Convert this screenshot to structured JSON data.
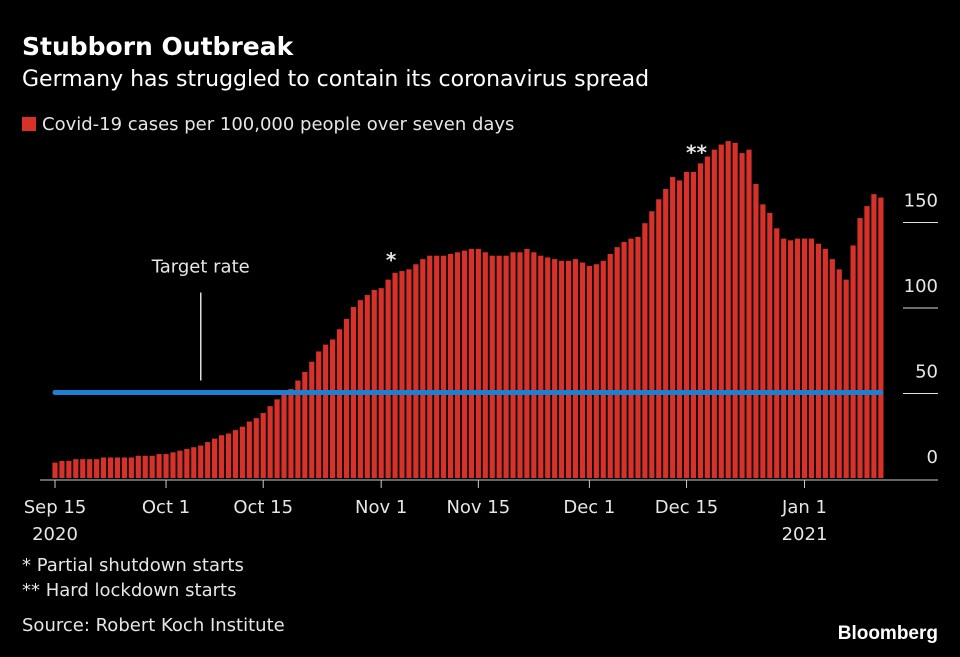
{
  "chart_data": {
    "type": "bar",
    "title": "Stubborn Outbreak",
    "subtitle": "Germany has struggled to contain its coronavirus spread",
    "series": [
      {
        "name": "Covid-19 cases per 100,000 people over seven days",
        "color": "#d7312a",
        "values": [
          9,
          10,
          10,
          11,
          11,
          11,
          11,
          12,
          12,
          12,
          12,
          12,
          13,
          13,
          13,
          14,
          14,
          15,
          16,
          17,
          18,
          19,
          21,
          23,
          25,
          26,
          28,
          30,
          33,
          35,
          38,
          42,
          46,
          49,
          52,
          57,
          62,
          68,
          74,
          78,
          81,
          87,
          93,
          100,
          104,
          107,
          110,
          111,
          116,
          120,
          121,
          122,
          125,
          128,
          130,
          130,
          130,
          131,
          132,
          133,
          134,
          134,
          132,
          130,
          130,
          130,
          132,
          132,
          134,
          132,
          130,
          129,
          128,
          127,
          127,
          128,
          126,
          124,
          125,
          127,
          131,
          135,
          138,
          140,
          141,
          149,
          156,
          163,
          169,
          176,
          174,
          179,
          179,
          184,
          188,
          192,
          195,
          197,
          196,
          190,
          192,
          172,
          160,
          155,
          146,
          140,
          139,
          140,
          140,
          140,
          137,
          134,
          128,
          122,
          116,
          136,
          152,
          159,
          166,
          164
        ]
      }
    ],
    "categories": [
      "2020-09-15",
      "2020-09-16",
      "2020-09-17",
      "2020-09-18",
      "2020-09-19",
      "2020-09-20",
      "2020-09-21",
      "2020-09-22",
      "2020-09-23",
      "2020-09-24",
      "2020-09-25",
      "2020-09-26",
      "2020-09-27",
      "2020-09-28",
      "2020-09-29",
      "2020-09-30",
      "2020-10-01",
      "2020-10-02",
      "2020-10-03",
      "2020-10-04",
      "2020-10-05",
      "2020-10-06",
      "2020-10-07",
      "2020-10-08",
      "2020-10-09",
      "2020-10-10",
      "2020-10-11",
      "2020-10-12",
      "2020-10-13",
      "2020-10-14",
      "2020-10-15",
      "2020-10-16",
      "2020-10-17",
      "2020-10-18",
      "2020-10-19",
      "2020-10-20",
      "2020-10-21",
      "2020-10-22",
      "2020-10-23",
      "2020-10-24",
      "2020-10-25",
      "2020-10-26",
      "2020-10-27",
      "2020-10-28",
      "2020-10-29",
      "2020-10-30",
      "2020-10-31",
      "2020-11-01",
      "2020-11-02",
      "2020-11-03",
      "2020-11-04",
      "2020-11-05",
      "2020-11-06",
      "2020-11-07",
      "2020-11-08",
      "2020-11-09",
      "2020-11-10",
      "2020-11-11",
      "2020-11-12",
      "2020-11-13",
      "2020-11-14",
      "2020-11-15",
      "2020-11-16",
      "2020-11-17",
      "2020-11-18",
      "2020-11-19",
      "2020-11-20",
      "2020-11-21",
      "2020-11-22",
      "2020-11-23",
      "2020-11-24",
      "2020-11-25",
      "2020-11-26",
      "2020-11-27",
      "2020-11-28",
      "2020-11-29",
      "2020-11-30",
      "2020-12-01",
      "2020-12-02",
      "2020-12-03",
      "2020-12-04",
      "2020-12-05",
      "2020-12-06",
      "2020-12-07",
      "2020-12-08",
      "2020-12-09",
      "2020-12-10",
      "2020-12-11",
      "2020-12-12",
      "2020-12-13",
      "2020-12-14",
      "2020-12-15",
      "2020-12-16",
      "2020-12-17",
      "2020-12-18",
      "2020-12-19",
      "2020-12-20",
      "2020-12-21",
      "2020-12-22",
      "2020-12-23",
      "2020-12-24",
      "2020-12-25",
      "2020-12-26",
      "2020-12-27",
      "2020-12-28",
      "2020-12-29",
      "2020-12-30",
      "2020-12-31",
      "2021-01-01",
      "2021-01-02",
      "2021-01-03",
      "2021-01-04",
      "2021-01-05",
      "2021-01-06",
      "2021-01-07",
      "2021-01-08",
      "2021-01-09",
      "2021-01-10",
      "2021-01-11",
      "2021-01-12"
    ],
    "ylim": [
      0,
      200
    ],
    "yticks": [
      0,
      50,
      100,
      150
    ],
    "xticks": [
      {
        "value": "2020-09-15",
        "label": "Sep 15"
      },
      {
        "value": "2020-10-01",
        "label": "Oct 1"
      },
      {
        "value": "2020-10-15",
        "label": "Oct 15"
      },
      {
        "value": "2020-11-01",
        "label": "Nov 1"
      },
      {
        "value": "2020-11-15",
        "label": "Nov 15"
      },
      {
        "value": "2020-12-01",
        "label": "Dec 1"
      },
      {
        "value": "2020-12-15",
        "label": "Dec 15"
      },
      {
        "value": "2021-01-01",
        "label": "Jan 1"
      }
    ],
    "xtick_years": [
      {
        "value": "2020-09-15",
        "label": "2020"
      },
      {
        "value": "2021-01-01",
        "label": "2021"
      }
    ],
    "target": 50,
    "target_color": "#1b7fd3",
    "annotations": [
      {
        "text": "Target rate",
        "x": "2020-10-06"
      },
      {
        "text": "*",
        "x": "2020-11-02"
      },
      {
        "text": "**",
        "x": "2020-12-16"
      }
    ],
    "footnotes": [
      "* Partial shutdown starts",
      "** Hard lockdown starts"
    ],
    "source": "Source: Robert Koch Institute",
    "brand": "Bloomberg"
  }
}
